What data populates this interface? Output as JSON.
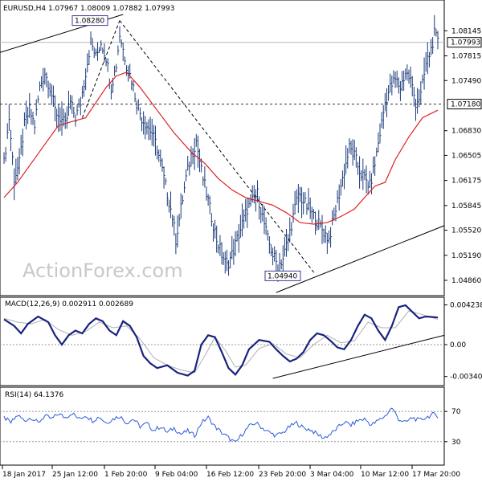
{
  "chart_data": [
    {
      "type": "candlestick",
      "header": "EURUSD,H4  1.07967 1.08009 1.07882 1.07993",
      "watermark": "ActionForex.com",
      "ylim": [
        1.0468,
        1.0836
      ],
      "y_ticks": [
        "1.08145",
        "1.07815",
        "1.07490",
        "1.06830",
        "1.06505",
        "1.06175",
        "1.05845",
        "1.05520",
        "1.05190",
        "1.04860"
      ],
      "current_price_label": "1.07993",
      "current_price": 1.07993,
      "level_label": "1.07180",
      "level": 1.0718,
      "swing_high_label": "1.08280",
      "swing_high": 1.0828,
      "swing_low_label": "1.04940",
      "swing_low": 1.0494,
      "ma_color": "#e02020",
      "price_color": "#1a3a7a",
      "x_tick_labels": [
        "18 Jan 2017",
        "25 Jan 12:00",
        "1 Feb 20:00",
        "9 Feb 04:00",
        "16 Feb 12:00",
        "23 Feb 20:00",
        "3 Mar 04:00",
        "10 Mar 12:00",
        "17 Mar 20:00"
      ],
      "close_path": [
        [
          0,
          1.064
        ],
        [
          3,
          1.07
        ],
        [
          6,
          1.062
        ],
        [
          9,
          1.064
        ],
        [
          12,
          1.069
        ],
        [
          15,
          1.071
        ],
        [
          18,
          1.069
        ],
        [
          21,
          1.074
        ],
        [
          24,
          1.076
        ],
        [
          27,
          1.074
        ],
        [
          30,
          1.071
        ],
        [
          33,
          1.07
        ],
        [
          36,
          1.069
        ],
        [
          39,
          1.072
        ],
        [
          42,
          1.07
        ],
        [
          45,
          1.072
        ],
        [
          48,
          1.076
        ],
        [
          51,
          1.08
        ],
        [
          54,
          1.078
        ],
        [
          57,
          1.08
        ],
        [
          60,
          1.078
        ],
        [
          63,
          1.074
        ],
        [
          66,
          1.077
        ],
        [
          68,
          1.081
        ],
        [
          72,
          1.077
        ],
        [
          75,
          1.075
        ],
        [
          78,
          1.072
        ],
        [
          81,
          1.07
        ],
        [
          84,
          1.069
        ],
        [
          87,
          1.068
        ],
        [
          90,
          1.066
        ],
        [
          93,
          1.063
        ],
        [
          96,
          1.06
        ],
        [
          99,
          1.057
        ],
        [
          101,
          1.054
        ],
        [
          104,
          1.058
        ],
        [
          107,
          1.062
        ],
        [
          110,
          1.065
        ],
        [
          113,
          1.067
        ],
        [
          116,
          1.063
        ],
        [
          119,
          1.06
        ],
        [
          122,
          1.057
        ],
        [
          125,
          1.054
        ],
        [
          128,
          1.052
        ],
        [
          131,
          1.0505
        ],
        [
          134,
          1.052
        ],
        [
          137,
          1.054
        ],
        [
          140,
          1.056
        ],
        [
          143,
          1.058
        ],
        [
          146,
          1.059
        ],
        [
          149,
          1.06
        ],
        [
          152,
          1.057
        ],
        [
          155,
          1.054
        ],
        [
          158,
          1.052
        ],
        [
          161,
          1.0505
        ],
        [
          164,
          1.0515
        ],
        [
          167,
          1.054
        ],
        [
          170,
          1.057
        ],
        [
          173,
          1.06
        ],
        [
          176,
          1.059
        ],
        [
          179,
          1.058
        ],
        [
          182,
          1.057
        ],
        [
          185,
          1.056
        ],
        [
          188,
          1.055
        ],
        [
          191,
          1.054
        ],
        [
          194,
          1.057
        ],
        [
          197,
          1.06
        ],
        [
          200,
          1.063
        ],
        [
          203,
          1.066
        ],
        [
          206,
          1.065
        ],
        [
          209,
          1.063
        ],
        [
          212,
          1.062
        ],
        [
          215,
          1.061
        ],
        [
          218,
          1.064
        ],
        [
          221,
          1.068
        ],
        [
          224,
          1.072
        ],
        [
          227,
          1.074
        ],
        [
          230,
          1.075
        ],
        [
          233,
          1.074
        ],
        [
          236,
          1.076
        ],
        [
          239,
          1.075
        ],
        [
          242,
          1.072
        ],
        [
          245,
          1.073
        ],
        [
          248,
          1.077
        ],
        [
          251,
          1.079
        ],
        [
          253,
          1.081
        ],
        [
          255,
          1.0799
        ]
      ],
      "ma_path": [
        [
          0,
          1.0595
        ],
        [
          8,
          1.0615
        ],
        [
          16,
          1.064
        ],
        [
          24,
          1.0665
        ],
        [
          32,
          1.069
        ],
        [
          40,
          1.0695
        ],
        [
          48,
          1.07
        ],
        [
          54,
          1.072
        ],
        [
          60,
          1.074
        ],
        [
          66,
          1.0755
        ],
        [
          72,
          1.076
        ],
        [
          80,
          1.074
        ],
        [
          90,
          1.071
        ],
        [
          100,
          1.068
        ],
        [
          110,
          1.0655
        ],
        [
          118,
          1.064
        ],
        [
          126,
          1.062
        ],
        [
          134,
          1.0605
        ],
        [
          142,
          1.0595
        ],
        [
          150,
          1.059
        ],
        [
          158,
          1.0585
        ],
        [
          166,
          1.0575
        ],
        [
          174,
          1.0562
        ],
        [
          182,
          1.056
        ],
        [
          190,
          1.0562
        ],
        [
          198,
          1.057
        ],
        [
          206,
          1.058
        ],
        [
          212,
          1.0595
        ],
        [
          218,
          1.061
        ],
        [
          224,
          1.0615
        ],
        [
          230,
          1.0645
        ],
        [
          238,
          1.0675
        ],
        [
          246,
          1.07
        ],
        [
          255,
          1.071
        ]
      ],
      "macd": {
        "label": "MACD(12,26,9) 0.002911 0.002689",
        "ylim": [
          -0.0042,
          0.0048
        ],
        "y_ticks": [
          "0.004238",
          "0.00",
          "-0.003404"
        ],
        "macd_path": [
          [
            0,
            0.0027
          ],
          [
            6,
            0.002
          ],
          [
            10,
            0.0012
          ],
          [
            14,
            0.0022
          ],
          [
            20,
            0.003
          ],
          [
            26,
            0.0024
          ],
          [
            30,
            0.001
          ],
          [
            34,
            0.0
          ],
          [
            38,
            0.001
          ],
          [
            42,
            0.0015
          ],
          [
            46,
            0.0012
          ],
          [
            50,
            0.0022
          ],
          [
            54,
            0.0028
          ],
          [
            58,
            0.0025
          ],
          [
            62,
            0.0015
          ],
          [
            66,
            0.001
          ],
          [
            70,
            0.0025
          ],
          [
            74,
            0.002
          ],
          [
            78,
            0.0008
          ],
          [
            82,
            -0.0012
          ],
          [
            86,
            -0.002
          ],
          [
            90,
            -0.0025
          ],
          [
            96,
            -0.0022
          ],
          [
            102,
            -0.003
          ],
          [
            108,
            -0.0033
          ],
          [
            112,
            -0.0028
          ],
          [
            116,
            0.0
          ],
          [
            120,
            0.001
          ],
          [
            124,
            0.0008
          ],
          [
            128,
            -0.0008
          ],
          [
            132,
            -0.0025
          ],
          [
            136,
            -0.0032
          ],
          [
            140,
            -0.0022
          ],
          [
            144,
            -0.0005
          ],
          [
            150,
            0.0005
          ],
          [
            156,
            0.0003
          ],
          [
            160,
            -0.0005
          ],
          [
            164,
            -0.0012
          ],
          [
            168,
            -0.0018
          ],
          [
            172,
            -0.0015
          ],
          [
            176,
            -0.0008
          ],
          [
            180,
            0.0005
          ],
          [
            184,
            0.0012
          ],
          [
            188,
            0.001
          ],
          [
            192,
            0.0004
          ],
          [
            196,
            -0.0003
          ],
          [
            200,
            -0.0005
          ],
          [
            204,
            0.0005
          ],
          [
            208,
            0.002
          ],
          [
            212,
            0.0032
          ],
          [
            216,
            0.0028
          ],
          [
            220,
            0.0015
          ],
          [
            224,
            0.0005
          ],
          [
            228,
            0.002
          ],
          [
            232,
            0.004
          ],
          [
            236,
            0.0042
          ],
          [
            240,
            0.0035
          ],
          [
            244,
            0.0028
          ],
          [
            248,
            0.003
          ],
          [
            255,
            0.0029
          ]
        ],
        "signal_path": [
          [
            0,
            0.0028
          ],
          [
            8,
            0.0024
          ],
          [
            16,
            0.0022
          ],
          [
            24,
            0.0027
          ],
          [
            32,
            0.0016
          ],
          [
            40,
            0.001
          ],
          [
            48,
            0.0014
          ],
          [
            56,
            0.0024
          ],
          [
            64,
            0.0018
          ],
          [
            72,
            0.002
          ],
          [
            80,
            0.0006
          ],
          [
            88,
            -0.0014
          ],
          [
            96,
            -0.0022
          ],
          [
            104,
            -0.0027
          ],
          [
            112,
            -0.003
          ],
          [
            118,
            -0.0012
          ],
          [
            124,
            0.0008
          ],
          [
            130,
            -0.0006
          ],
          [
            136,
            -0.0024
          ],
          [
            142,
            -0.0022
          ],
          [
            150,
            -0.0004
          ],
          [
            158,
            0.0001
          ],
          [
            166,
            -0.001
          ],
          [
            174,
            -0.0014
          ],
          [
            182,
            0.0
          ],
          [
            190,
            0.001
          ],
          [
            198,
            0.0002
          ],
          [
            206,
            0.0004
          ],
          [
            214,
            0.0024
          ],
          [
            222,
            0.0018
          ],
          [
            230,
            0.0018
          ],
          [
            238,
            0.0036
          ],
          [
            246,
            0.0032
          ],
          [
            255,
            0.0027
          ]
        ],
        "line_color": "#1a237e",
        "signal_color": "#b0b0b0"
      },
      "rsi": {
        "label": "RSI(14) 64.1376",
        "ylim": [
          0,
          100
        ],
        "y_ticks": [
          70,
          30
        ],
        "path": [
          [
            0,
            62
          ],
          [
            4,
            55
          ],
          [
            8,
            65
          ],
          [
            12,
            58
          ],
          [
            16,
            62
          ],
          [
            20,
            55
          ],
          [
            24,
            64
          ],
          [
            28,
            60
          ],
          [
            32,
            67
          ],
          [
            36,
            62
          ],
          [
            40,
            68
          ],
          [
            44,
            60
          ],
          [
            48,
            65
          ],
          [
            52,
            58
          ],
          [
            56,
            63
          ],
          [
            60,
            55
          ],
          [
            64,
            60
          ],
          [
            68,
            64
          ],
          [
            72,
            55
          ],
          [
            76,
            60
          ],
          [
            80,
            50
          ],
          [
            84,
            54
          ],
          [
            88,
            45
          ],
          [
            92,
            50
          ],
          [
            96,
            42
          ],
          [
            100,
            48
          ],
          [
            104,
            40
          ],
          [
            108,
            44
          ],
          [
            112,
            38
          ],
          [
            116,
            55
          ],
          [
            120,
            62
          ],
          [
            124,
            50
          ],
          [
            128,
            42
          ],
          [
            132,
            35
          ],
          [
            136,
            28
          ],
          [
            140,
            40
          ],
          [
            144,
            50
          ],
          [
            148,
            55
          ],
          [
            152,
            48
          ],
          [
            156,
            42
          ],
          [
            160,
            38
          ],
          [
            164,
            42
          ],
          [
            168,
            50
          ],
          [
            172,
            55
          ],
          [
            176,
            48
          ],
          [
            180,
            46
          ],
          [
            184,
            40
          ],
          [
            188,
            35
          ],
          [
            192,
            40
          ],
          [
            196,
            48
          ],
          [
            200,
            56
          ],
          [
            204,
            52
          ],
          [
            208,
            58
          ],
          [
            212,
            60
          ],
          [
            216,
            52
          ],
          [
            220,
            58
          ],
          [
            224,
            64
          ],
          [
            228,
            75
          ],
          [
            232,
            60
          ],
          [
            236,
            55
          ],
          [
            240,
            62
          ],
          [
            244,
            58
          ],
          [
            248,
            62
          ],
          [
            252,
            66
          ],
          [
            255,
            64
          ]
        ],
        "color": "#2a5bd7"
      }
    }
  ]
}
